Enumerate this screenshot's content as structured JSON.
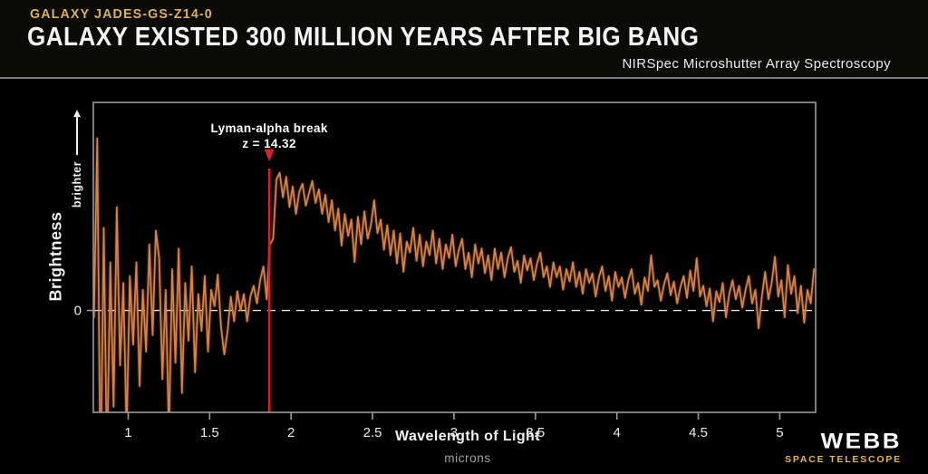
{
  "header": {
    "galaxy_label": "GALAXY JADES-GS-Z14-0",
    "title": "GALAXY EXISTED 300 MILLION YEARS AFTER BIG BANG",
    "subtitle": "NIRSpec Microshutter Array Spectroscopy"
  },
  "logo": {
    "brand": "WEBB",
    "brand_sub": "SPACE TELESCOPE"
  },
  "colors": {
    "accent_gold": "#d9b251",
    "spectrum_orange": "#dd8142",
    "marker_red": "#d62128",
    "axis_gray": "#9b9b9b",
    "zero_dash": "#e3e3e3"
  },
  "chart_data": {
    "type": "line",
    "title": "",
    "xlabel": "Wavelength of Light",
    "xlabel_sub": "microns",
    "ylabel": "Brightness",
    "ylabel_sub": "brighter",
    "y_zero_label": "0",
    "x_ticks": [
      1,
      1.5,
      2,
      2.5,
      3,
      3.5,
      4,
      4.5,
      5
    ],
    "xlim": [
      0.786,
      5.22
    ],
    "ylim": [
      -0.74,
      1.51
    ],
    "grid": false,
    "legend": "none",
    "zero_line": "dashed horizontal at brightness 0",
    "annotation": {
      "line1": "Lyman-alpha break",
      "line2": "z = 14.32",
      "x": 1.866
    },
    "marker": {
      "x": 1.866,
      "line_top_value": 1.03,
      "triangle_top_value": 1.17,
      "triangle_apex_value": 1.08
    },
    "series": [
      {
        "name": "JADES-GS-z14-0 NIRSpec spectrum",
        "color": "#dd8142",
        "lambda_start": 0.79,
        "lambda_step": 0.02,
        "values": [
          -0.05,
          1.25,
          -1.3,
          0.6,
          -1.15,
          0.35,
          -0.7,
          0.75,
          -0.4,
          0.2,
          -0.9,
          0.25,
          -0.25,
          0.35,
          -0.55,
          0.15,
          -0.3,
          0.48,
          -0.18,
          0.58,
          0.38,
          -0.5,
          0.15,
          -0.9,
          0.3,
          -0.38,
          0.45,
          -0.6,
          0.2,
          -0.22,
          0.32,
          -0.45,
          0.12,
          -0.15,
          0.25,
          -0.3,
          0.15,
          0.03,
          0.26,
          -0.12,
          -0.32,
          -0.15,
          0.1,
          -0.08,
          0.14,
          0.0,
          0.12,
          -0.08,
          0.1,
          0.18,
          0.05,
          0.22,
          0.32,
          0.08,
          0.48,
          0.52,
          0.95,
          1.0,
          0.82,
          0.97,
          0.75,
          0.9,
          0.7,
          0.86,
          0.92,
          0.76,
          0.85,
          0.94,
          0.78,
          0.88,
          0.7,
          0.84,
          0.64,
          0.8,
          0.58,
          0.74,
          0.47,
          0.7,
          0.54,
          0.66,
          0.35,
          0.68,
          0.48,
          0.72,
          0.52,
          0.62,
          0.8,
          0.56,
          0.66,
          0.44,
          0.62,
          0.4,
          0.58,
          0.34,
          0.56,
          0.28,
          0.5,
          0.42,
          0.6,
          0.36,
          0.55,
          0.32,
          0.5,
          0.4,
          0.58,
          0.34,
          0.52,
          0.3,
          0.48,
          0.38,
          0.55,
          0.32,
          0.44,
          0.52,
          0.3,
          0.42,
          0.24,
          0.48,
          0.34,
          0.45,
          0.27,
          0.4,
          0.22,
          0.45,
          0.3,
          0.42,
          0.24,
          0.38,
          0.46,
          0.28,
          0.36,
          0.2,
          0.4,
          0.29,
          0.38,
          0.22,
          0.34,
          0.42,
          0.24,
          0.32,
          0.17,
          0.35,
          0.24,
          0.32,
          0.15,
          0.3,
          0.21,
          0.35,
          0.17,
          0.28,
          0.12,
          0.3,
          0.2,
          0.27,
          0.1,
          0.24,
          0.32,
          0.14,
          0.25,
          0.07,
          0.28,
          0.17,
          0.24,
          0.09,
          0.22,
          0.3,
          0.12,
          0.2,
          0.04,
          0.24,
          0.14,
          0.4,
          0.17,
          0.22,
          0.07,
          0.19,
          0.27,
          0.11,
          0.21,
          0.05,
          0.17,
          0.25,
          0.09,
          0.29,
          0.14,
          0.38,
          0.1,
          0.18,
          0.03,
          0.16,
          -0.08,
          0.14,
          0.06,
          0.2,
          -0.05,
          0.12,
          0.22,
          0.08,
          0.18,
          0.02,
          0.15,
          0.25,
          0.05,
          0.15,
          -0.13,
          0.1,
          0.28,
          0.08,
          0.2,
          0.39,
          0.1,
          0.22,
          -0.05,
          0.33,
          0.12,
          0.25,
          -0.02,
          0.18,
          -0.09,
          0.15,
          0.05,
          0.3
        ]
      }
    ]
  }
}
